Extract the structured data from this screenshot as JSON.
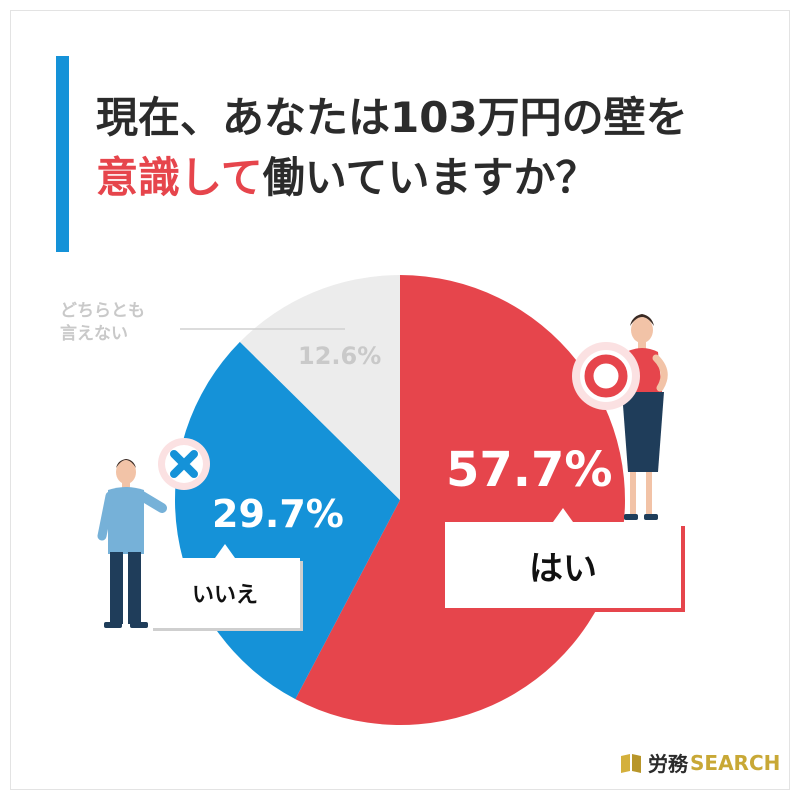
{
  "title": {
    "line1": "現在、あなたは103万円の壁を",
    "line2_accent": "意識して",
    "line2_rest": "働いていますか？"
  },
  "chart_data": {
    "type": "pie",
    "categories": [
      "はい",
      "いいえ",
      "どちらとも言えない"
    ],
    "values": [
      57.7,
      29.7,
      12.6
    ],
    "value_labels": [
      "57.7%",
      "29.7%",
      "12.6%"
    ],
    "colors": [
      "#e6454c",
      "#1592d8",
      "#ececec"
    ],
    "start_angle_deg": 0,
    "direction": "clockwise"
  },
  "callouts": {
    "yes": "はい",
    "no": "いいえ",
    "neutral_line1": "どちらとも",
    "neutral_line2": "言えない"
  },
  "icons": {
    "yes": "circle-mark-icon",
    "no": "cross-mark-icon"
  },
  "brand": {
    "name_jp": "労務",
    "name_en": "SEARCH"
  }
}
